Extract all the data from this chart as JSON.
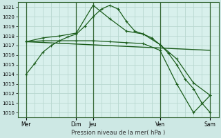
{
  "background_color": "#cde8e4",
  "plot_bg": "#d8f0ec",
  "grid_color": "#b8d8d0",
  "line_color": "#1a5c1a",
  "xlabel": "Pression niveau de la mer( hPa )",
  "ylim": [
    1009.5,
    1021.5
  ],
  "yticks": [
    1010,
    1011,
    1012,
    1013,
    1014,
    1015,
    1016,
    1017,
    1018,
    1019,
    1020,
    1021
  ],
  "xlim": [
    0,
    24
  ],
  "xtick_positions": [
    1,
    7,
    9,
    17,
    23
  ],
  "xtick_labels": [
    "Mer",
    "Dim",
    "Jeu",
    "Ven",
    "Sam"
  ],
  "day_vlines": [
    1,
    7,
    9,
    17,
    23
  ],
  "series": [
    {
      "x": [
        1,
        2,
        3,
        4,
        5,
        6,
        7,
        8,
        9,
        10,
        11,
        12,
        13,
        14,
        15,
        16,
        17,
        18,
        19,
        20,
        21,
        22,
        23
      ],
      "y": [
        1014.0,
        1015.1,
        1016.3,
        1017.0,
        1017.5,
        1017.9,
        1018.2,
        1019.0,
        1020.0,
        1020.8,
        1021.2,
        1020.8,
        1019.5,
        1018.5,
        1018.2,
        1017.8,
        1017.1,
        1016.2,
        1015.0,
        1013.5,
        1012.5,
        1011.0,
        1010.0
      ],
      "marker": "+",
      "lw": 0.9
    },
    {
      "x": [
        1,
        23
      ],
      "y": [
        1017.4,
        1016.5
      ],
      "marker": null,
      "lw": 1.0
    },
    {
      "x": [
        1,
        3,
        5,
        7,
        9,
        11,
        13,
        15,
        17,
        19,
        21,
        23
      ],
      "y": [
        1017.4,
        1017.8,
        1018.0,
        1018.3,
        1021.2,
        1019.8,
        1018.5,
        1018.2,
        1017.1,
        1015.6,
        1013.1,
        1011.8
      ],
      "marker": "+",
      "lw": 0.9
    },
    {
      "x": [
        1,
        3,
        5,
        7,
        9,
        11,
        13,
        15,
        17,
        19,
        21,
        23
      ],
      "y": [
        1017.4,
        1017.5,
        1017.5,
        1017.5,
        1017.5,
        1017.4,
        1017.3,
        1017.2,
        1016.5,
        1013.0,
        1010.0,
        1011.8
      ],
      "marker": "+",
      "lw": 0.9
    }
  ]
}
